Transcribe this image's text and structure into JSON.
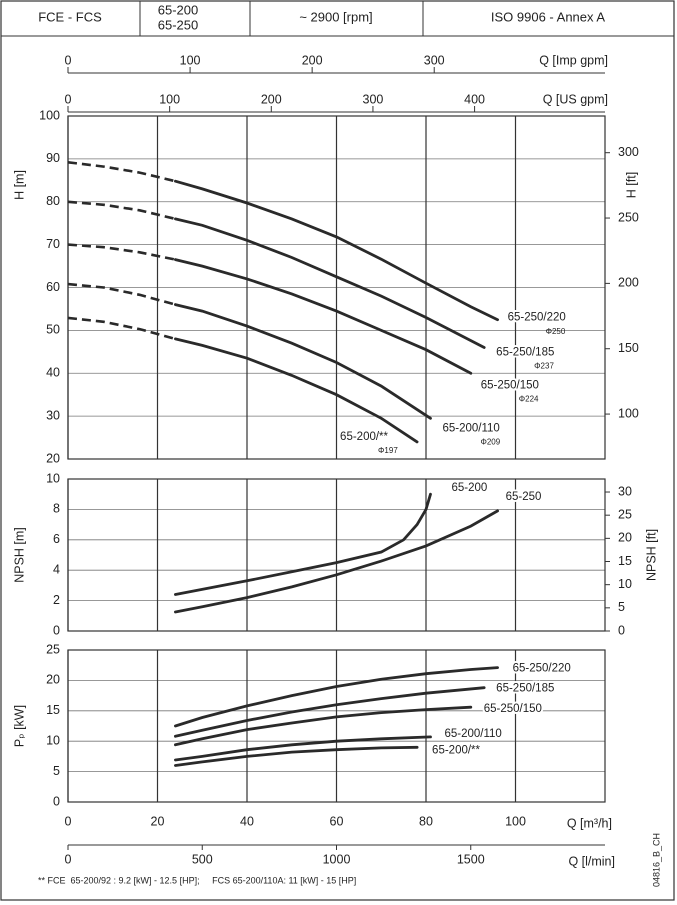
{
  "header": {
    "series_name": "FCE - FCS",
    "models": [
      "65-200",
      "65-250"
    ],
    "speed": "~ 2900 [rpm]",
    "standard": "ISO 9906 - Annex A"
  },
  "q_axes_top": [
    {
      "label": "Q [Imp gpm]",
      "xlim": [
        0,
        439.9
      ],
      "xticks": [
        0,
        100,
        200,
        300
      ]
    },
    {
      "label": "Q [US gpm]",
      "xlim": [
        0,
        528.3
      ],
      "xticks": [
        0,
        100,
        200,
        300,
        400
      ]
    }
  ],
  "chart_data": [
    {
      "type": "line",
      "ylabel": "H [m]",
      "y2label": "H [ft]",
      "xlim": [
        0,
        120
      ],
      "xticks": [
        0,
        20,
        40,
        60,
        80,
        100
      ],
      "ylim": [
        20,
        100
      ],
      "yticks": [
        20,
        30,
        40,
        50,
        60,
        70,
        80,
        90,
        100
      ],
      "y2lim": [
        65.62,
        328.08
      ],
      "y2ticks": [
        100,
        150,
        200,
        250,
        300
      ],
      "grid": true,
      "series": [
        {
          "name": "65-250/220",
          "sub": "Φ250",
          "color": "#2a2a2a",
          "dashed_x": [
            0,
            8,
            16,
            24
          ],
          "dashed_values": [
            89.2,
            88.2,
            86.8,
            84.8
          ],
          "x": [
            24,
            30,
            40,
            50,
            60,
            70,
            80,
            90,
            96
          ],
          "values": [
            84.8,
            83,
            79.7,
            76,
            71.8,
            66.6,
            61,
            55.5,
            52.5
          ]
        },
        {
          "name": "65-250/185",
          "sub": "Φ237",
          "color": "#2a2a2a",
          "dashed_x": [
            0,
            8,
            16,
            24
          ],
          "dashed_values": [
            80,
            79.3,
            78,
            76
          ],
          "x": [
            24,
            30,
            40,
            50,
            60,
            70,
            80,
            93
          ],
          "values": [
            76,
            74.5,
            71,
            67,
            62.5,
            58,
            53,
            46
          ]
        },
        {
          "name": "65-250/150",
          "sub": "Φ224",
          "color": "#2a2a2a",
          "dashed_x": [
            0,
            8,
            16,
            24
          ],
          "dashed_values": [
            70,
            69.4,
            68.2,
            66.5
          ],
          "x": [
            24,
            30,
            40,
            50,
            60,
            70,
            80,
            90
          ],
          "values": [
            66.5,
            65,
            62,
            58.5,
            54.5,
            50,
            45.5,
            40
          ]
        },
        {
          "name": "65-200/110",
          "sub": "Φ209",
          "color": "#2a2a2a",
          "dashed_x": [
            0,
            8,
            16,
            24
          ],
          "dashed_values": [
            60.8,
            60,
            58.3,
            56
          ],
          "x": [
            24,
            30,
            40,
            50,
            60,
            70,
            81
          ],
          "values": [
            56,
            54.5,
            51,
            47,
            42.5,
            37,
            29.5
          ]
        },
        {
          "name": "65-200/**",
          "sub": "Φ197",
          "color": "#2a2a2a",
          "dashed_x": [
            0,
            8,
            16,
            24
          ],
          "dashed_values": [
            52.9,
            52,
            50.3,
            48
          ],
          "x": [
            24,
            30,
            40,
            50,
            60,
            70,
            78
          ],
          "values": [
            48,
            46.5,
            43.5,
            39.5,
            35,
            29.5,
            24
          ]
        }
      ]
    },
    {
      "type": "line",
      "ylabel": "NPSH [m]",
      "y2label": "NPSH [ft]",
      "xlim": [
        0,
        120
      ],
      "xticks": [
        0,
        20,
        40,
        60,
        80,
        100
      ],
      "ylim": [
        0,
        10
      ],
      "yticks": [
        0,
        2,
        4,
        6,
        8,
        10
      ],
      "y2lim": [
        0,
        32.81
      ],
      "y2ticks": [
        0,
        5,
        10,
        15,
        20,
        25,
        30
      ],
      "grid": true,
      "series": [
        {
          "name": "65-200",
          "color": "#2a2a2a",
          "x": [
            24,
            40,
            50,
            60,
            70,
            75,
            78,
            80,
            81
          ],
          "values": [
            2.4,
            3.3,
            3.9,
            4.5,
            5.2,
            6,
            7,
            8,
            9
          ]
        },
        {
          "name": "65-250",
          "color": "#2a2a2a",
          "x": [
            24,
            30,
            40,
            50,
            60,
            70,
            80,
            90,
            96
          ],
          "values": [
            1.25,
            1.6,
            2.2,
            2.9,
            3.7,
            4.6,
            5.6,
            6.9,
            7.9
          ]
        }
      ]
    },
    {
      "type": "line",
      "ylabel": "Pₚ [kW]",
      "xlabel": "Q [m³/h]",
      "xlim": [
        0,
        120
      ],
      "xticks": [
        0,
        20,
        40,
        60,
        80,
        100
      ],
      "ylim": [
        0,
        25
      ],
      "yticks": [
        0,
        5,
        10,
        15,
        20,
        25
      ],
      "grid": true,
      "series": [
        {
          "name": "65-250/220",
          "color": "#2a2a2a",
          "x": [
            24,
            30,
            40,
            50,
            60,
            70,
            80,
            90,
            96
          ],
          "values": [
            12.5,
            13.9,
            15.8,
            17.5,
            19,
            20.2,
            21.1,
            21.8,
            22.1
          ]
        },
        {
          "name": "65-250/185",
          "color": "#2a2a2a",
          "x": [
            24,
            30,
            40,
            50,
            60,
            70,
            80,
            93
          ],
          "values": [
            10.8,
            11.8,
            13.4,
            14.8,
            16,
            17,
            17.9,
            18.8
          ]
        },
        {
          "name": "65-250/150",
          "color": "#2a2a2a",
          "x": [
            24,
            30,
            40,
            50,
            60,
            70,
            80,
            90
          ],
          "values": [
            9.4,
            10.4,
            11.9,
            13,
            14,
            14.7,
            15.2,
            15.6
          ]
        },
        {
          "name": "65-200/110",
          "color": "#2a2a2a",
          "x": [
            24,
            30,
            40,
            50,
            60,
            70,
            81
          ],
          "values": [
            6.9,
            7.5,
            8.6,
            9.4,
            10,
            10.4,
            10.7
          ]
        },
        {
          "name": "65-200/**",
          "color": "#2a2a2a",
          "x": [
            24,
            30,
            40,
            50,
            60,
            70,
            78
          ],
          "values": [
            6,
            6.6,
            7.5,
            8.2,
            8.6,
            8.9,
            9
          ]
        }
      ]
    }
  ],
  "q_axis_bottom": {
    "label": "Q [l/min]",
    "xlim": [
      0,
      2000
    ],
    "xticks": [
      0,
      500,
      1000,
      1500
    ]
  },
  "footnote": "** FCE  65-200/92 : 9.2 [kW] - 12.5 [HP];     FCS 65-200/110A: 11 [kW] - 15 [HP]",
  "drawing_code": "04816_B_CH"
}
